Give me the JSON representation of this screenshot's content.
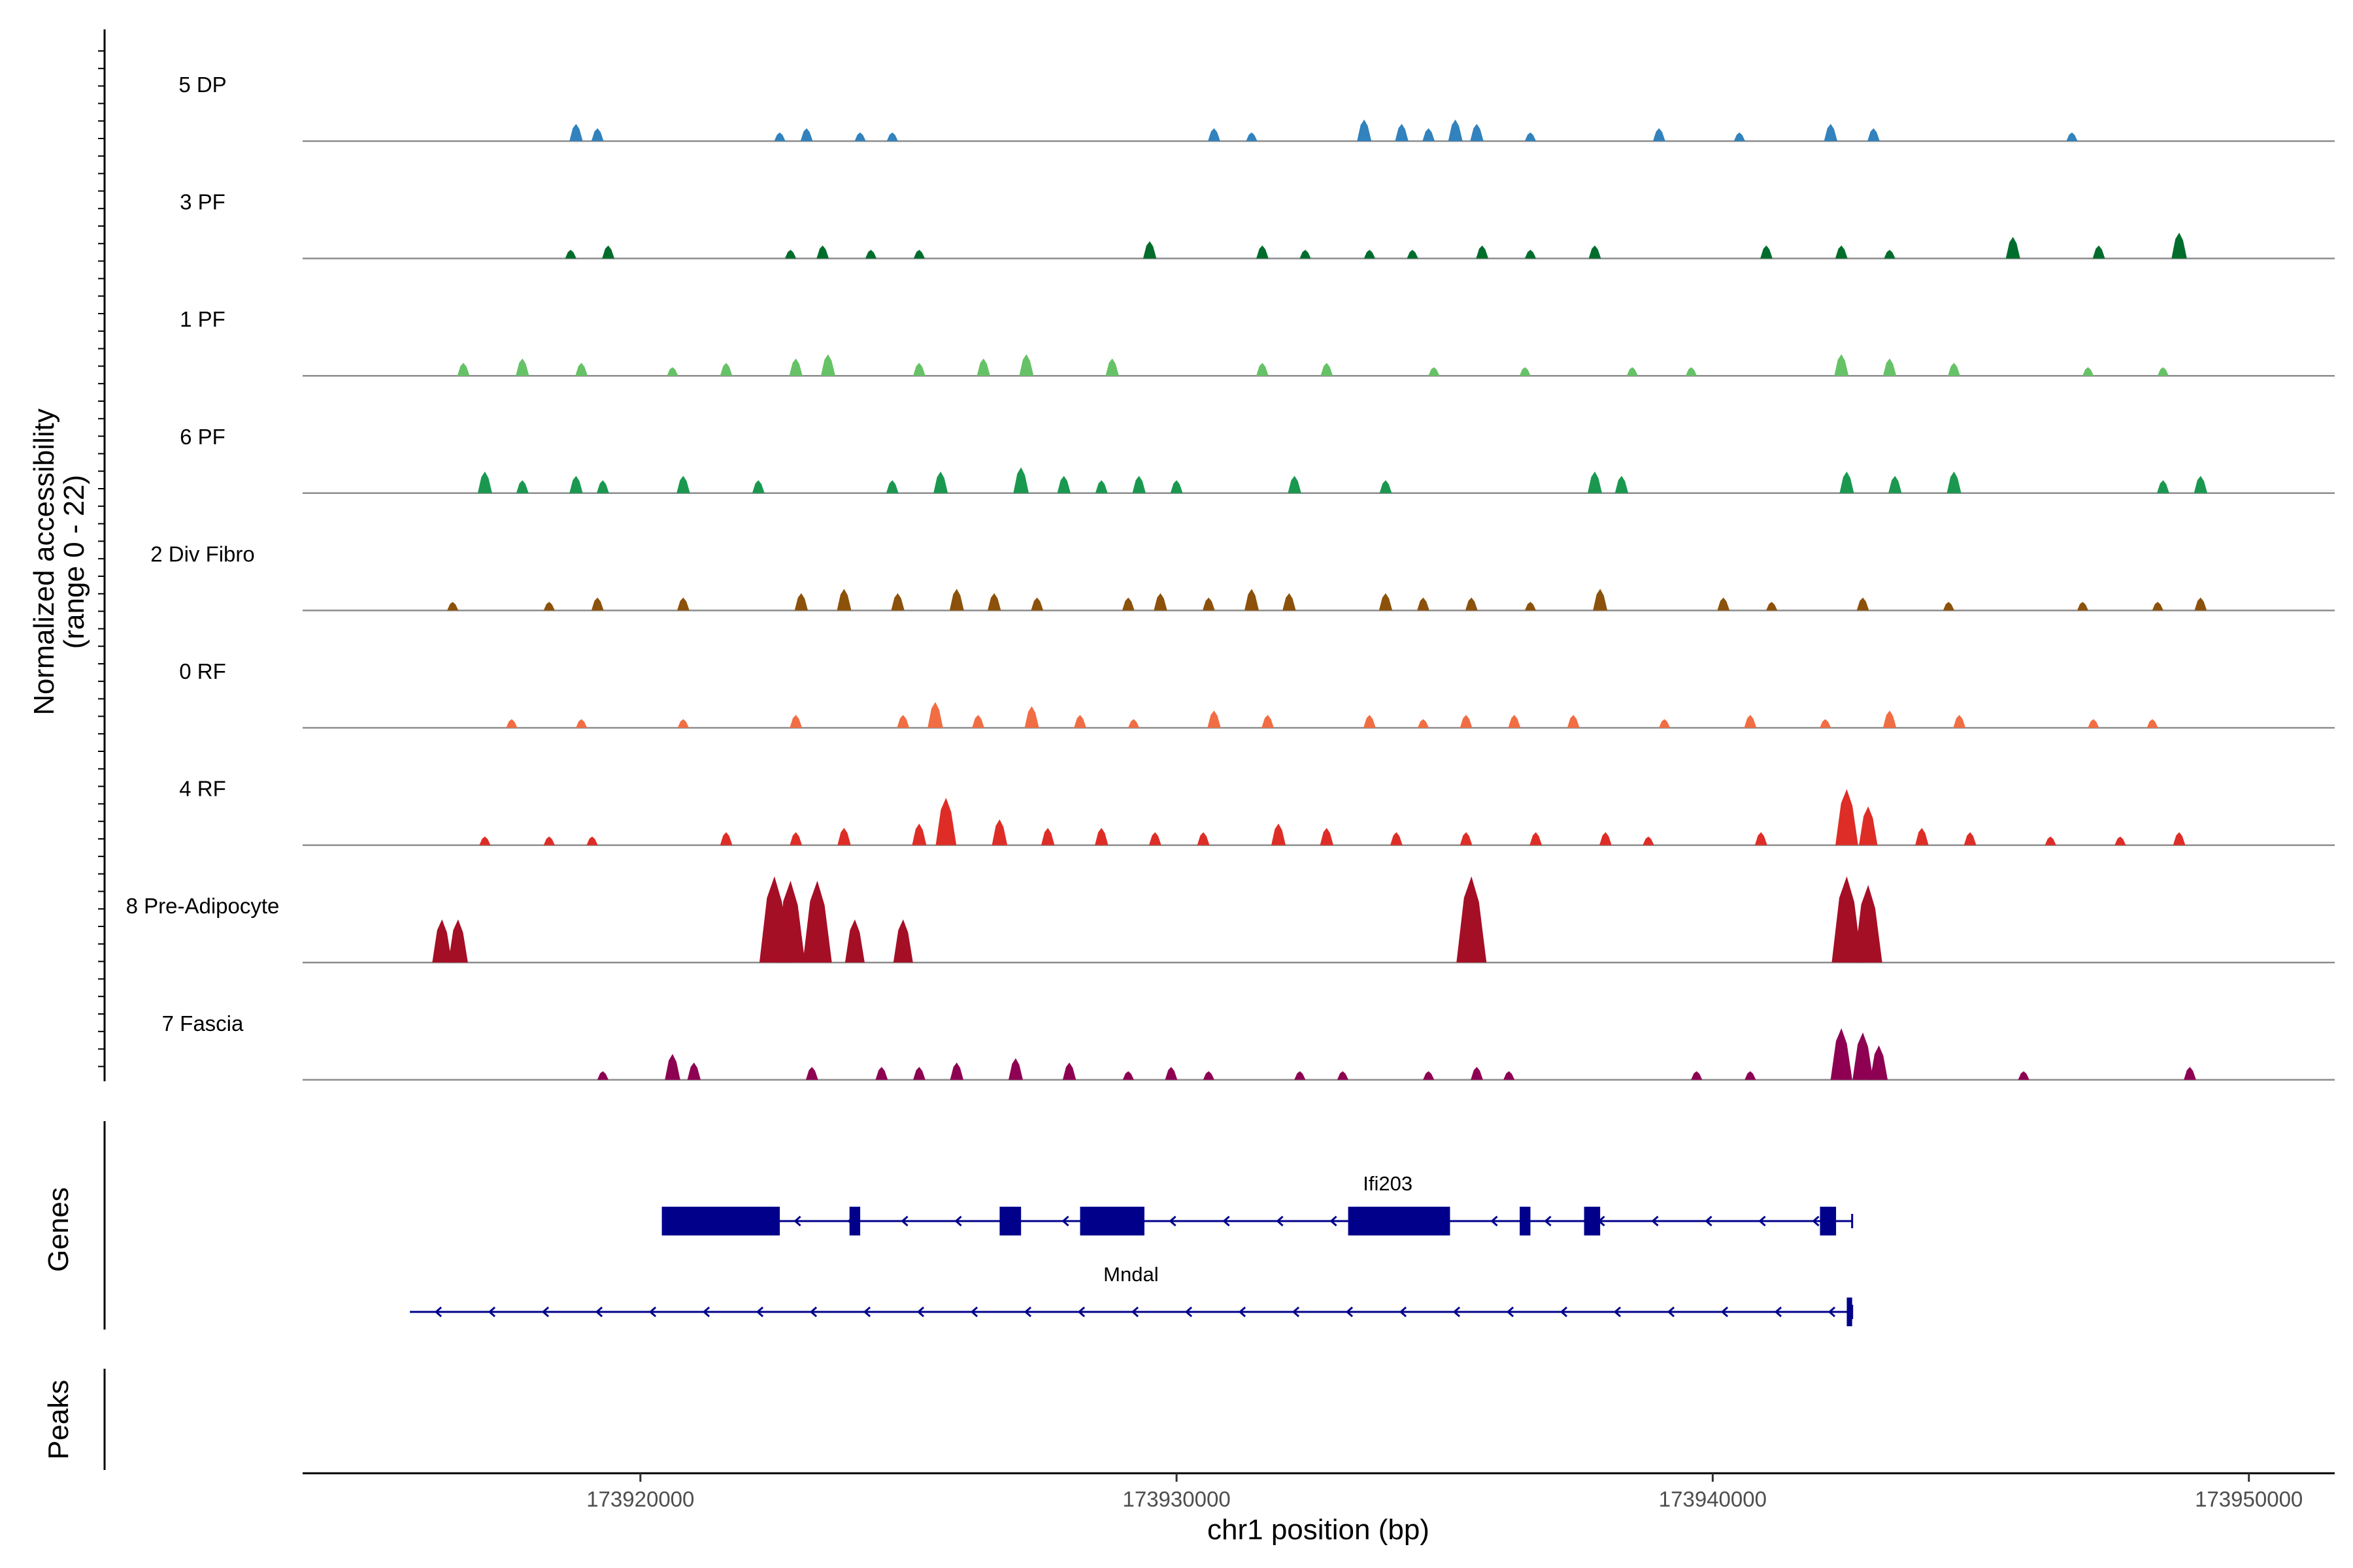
{
  "chart_data": {
    "type": "area",
    "title": "",
    "y_axis_title": "Normalized accessibility",
    "y_axis_subtitle": "(range 0 - 22)",
    "ylim": [
      0,
      22
    ],
    "x_axis_title": "chr1 position (bp)",
    "xlim": [
      173913700,
      173951600
    ],
    "x_ticks": [
      173920000,
      173930000,
      173940000,
      173950000
    ],
    "x_tick_labels": [
      "173920000",
      "173930000",
      "173940000",
      "173950000"
    ],
    "genes_panel_label": "Genes",
    "peaks_panel_label": "Peaks",
    "tracks": [
      {
        "label": "5 DP",
        "color": "#3182BD",
        "peaks": [
          [
            173918800,
            4
          ],
          [
            173919200,
            3
          ],
          [
            173922600,
            2
          ],
          [
            173923100,
            3
          ],
          [
            173924100,
            2
          ],
          [
            173924700,
            2
          ],
          [
            173930700,
            3
          ],
          [
            173931400,
            2
          ],
          [
            173933500,
            5
          ],
          [
            173934200,
            4
          ],
          [
            173934700,
            3
          ],
          [
            173935200,
            5
          ],
          [
            173935600,
            4
          ],
          [
            173936600,
            2
          ],
          [
            173939000,
            3
          ],
          [
            173940500,
            2
          ],
          [
            173942200,
            4
          ],
          [
            173943000,
            3
          ],
          [
            173946700,
            2
          ]
        ]
      },
      {
        "label": "3 PF",
        "color": "#006D2C",
        "peaks": [
          [
            173918700,
            2
          ],
          [
            173919400,
            3
          ],
          [
            173922800,
            2
          ],
          [
            173923400,
            3
          ],
          [
            173924300,
            2
          ],
          [
            173925200,
            2
          ],
          [
            173929500,
            4
          ],
          [
            173931600,
            3
          ],
          [
            173932400,
            2
          ],
          [
            173933600,
            2
          ],
          [
            173934400,
            2
          ],
          [
            173935700,
            3
          ],
          [
            173936600,
            2
          ],
          [
            173937800,
            3
          ],
          [
            173941000,
            3
          ],
          [
            173942400,
            3
          ],
          [
            173943300,
            2
          ],
          [
            173945600,
            5
          ],
          [
            173947200,
            3
          ],
          [
            173948700,
            6
          ]
        ]
      },
      {
        "label": "1 PF",
        "color": "#66C266",
        "peaks": [
          [
            173916700,
            3
          ],
          [
            173917800,
            4
          ],
          [
            173918900,
            3
          ],
          [
            173920600,
            2
          ],
          [
            173921600,
            3
          ],
          [
            173922900,
            4
          ],
          [
            173923500,
            5
          ],
          [
            173925200,
            3
          ],
          [
            173926400,
            4
          ],
          [
            173927200,
            5
          ],
          [
            173928800,
            4
          ],
          [
            173931600,
            3
          ],
          [
            173932800,
            3
          ],
          [
            173934800,
            2
          ],
          [
            173936500,
            2
          ],
          [
            173938500,
            2
          ],
          [
            173939600,
            2
          ],
          [
            173942400,
            5
          ],
          [
            173943300,
            4
          ],
          [
            173944500,
            3
          ],
          [
            173947000,
            2
          ],
          [
            173948400,
            2
          ]
        ]
      },
      {
        "label": "6 PF",
        "color": "#1A9850",
        "peaks": [
          [
            173917100,
            5
          ],
          [
            173917800,
            3
          ],
          [
            173918800,
            4
          ],
          [
            173919300,
            3
          ],
          [
            173920800,
            4
          ],
          [
            173922200,
            3
          ],
          [
            173924700,
            3
          ],
          [
            173925600,
            5
          ],
          [
            173927100,
            6
          ],
          [
            173927900,
            4
          ],
          [
            173928600,
            3
          ],
          [
            173929300,
            4
          ],
          [
            173930000,
            3
          ],
          [
            173932200,
            4
          ],
          [
            173933900,
            3
          ],
          [
            173937800,
            5
          ],
          [
            173938300,
            4
          ],
          [
            173942500,
            5
          ],
          [
            173943400,
            4
          ],
          [
            173944500,
            5
          ],
          [
            173948400,
            3
          ],
          [
            173949100,
            4
          ]
        ]
      },
      {
        "label": "2 Div Fibro",
        "color": "#8C510A",
        "peaks": [
          [
            173916500,
            2
          ],
          [
            173918300,
            2
          ],
          [
            173919200,
            3
          ],
          [
            173920800,
            3
          ],
          [
            173923000,
            4
          ],
          [
            173923800,
            5
          ],
          [
            173924800,
            4
          ],
          [
            173925900,
            5
          ],
          [
            173926600,
            4
          ],
          [
            173927400,
            3
          ],
          [
            173929100,
            3
          ],
          [
            173929700,
            4
          ],
          [
            173930600,
            3
          ],
          [
            173931400,
            5
          ],
          [
            173932100,
            4
          ],
          [
            173933900,
            4
          ],
          [
            173934600,
            3
          ],
          [
            173935500,
            3
          ],
          [
            173936600,
            2
          ],
          [
            173937900,
            5
          ],
          [
            173940200,
            3
          ],
          [
            173941100,
            2
          ],
          [
            173942800,
            3
          ],
          [
            173944400,
            2
          ],
          [
            173946900,
            2
          ],
          [
            173948300,
            2
          ],
          [
            173949100,
            3
          ]
        ]
      },
      {
        "label": "0 RF",
        "color": "#F16D43",
        "peaks": [
          [
            173917600,
            2
          ],
          [
            173918900,
            2
          ],
          [
            173920800,
            2
          ],
          [
            173922900,
            3
          ],
          [
            173924900,
            3
          ],
          [
            173925500,
            6
          ],
          [
            173926300,
            3
          ],
          [
            173927300,
            5
          ],
          [
            173928200,
            3
          ],
          [
            173929200,
            2
          ],
          [
            173930700,
            4
          ],
          [
            173931700,
            3
          ],
          [
            173933600,
            3
          ],
          [
            173934600,
            2
          ],
          [
            173935400,
            3
          ],
          [
            173936300,
            3
          ],
          [
            173937400,
            3
          ],
          [
            173939100,
            2
          ],
          [
            173940700,
            3
          ],
          [
            173942100,
            2
          ],
          [
            173943300,
            4
          ],
          [
            173944600,
            3
          ],
          [
            173947100,
            2
          ],
          [
            173948200,
            2
          ]
        ]
      },
      {
        "label": "4 RF",
        "color": "#DE2D26",
        "peaks": [
          [
            173917100,
            2
          ],
          [
            173918300,
            2
          ],
          [
            173919100,
            2
          ],
          [
            173921600,
            3
          ],
          [
            173922900,
            3
          ],
          [
            173923800,
            4
          ],
          [
            173925200,
            5
          ],
          [
            173925700,
            11
          ],
          [
            173926700,
            6
          ],
          [
            173927600,
            4
          ],
          [
            173928600,
            4
          ],
          [
            173929600,
            3
          ],
          [
            173930500,
            3
          ],
          [
            173931900,
            5
          ],
          [
            173932800,
            4
          ],
          [
            173934100,
            3
          ],
          [
            173935400,
            3
          ],
          [
            173936700,
            3
          ],
          [
            173938000,
            3
          ],
          [
            173938800,
            2
          ],
          [
            173940900,
            3
          ],
          [
            173942500,
            13
          ],
          [
            173942900,
            9
          ],
          [
            173943900,
            4
          ],
          [
            173944800,
            3
          ],
          [
            173946300,
            2
          ],
          [
            173947600,
            2
          ],
          [
            173948700,
            3
          ]
        ]
      },
      {
        "label": "8 Pre-Adipocyte",
        "color": "#A50F26",
        "peaks": [
          [
            173916300,
            10
          ],
          [
            173916600,
            10
          ],
          [
            173922500,
            20
          ],
          [
            173922800,
            19
          ],
          [
            173923300,
            19
          ],
          [
            173924000,
            10
          ],
          [
            173924900,
            10
          ],
          [
            173935500,
            20
          ],
          [
            173942500,
            20
          ],
          [
            173942900,
            18
          ]
        ]
      },
      {
        "label": "7 Fascia",
        "color": "#8E0152",
        "peaks": [
          [
            173919300,
            2
          ],
          [
            173920600,
            6
          ],
          [
            173921000,
            4
          ],
          [
            173923200,
            3
          ],
          [
            173924500,
            3
          ],
          [
            173925200,
            3
          ],
          [
            173925900,
            4
          ],
          [
            173927000,
            5
          ],
          [
            173928000,
            4
          ],
          [
            173929100,
            2
          ],
          [
            173929900,
            3
          ],
          [
            173930600,
            2
          ],
          [
            173932300,
            2
          ],
          [
            173933100,
            2
          ],
          [
            173934700,
            2
          ],
          [
            173935600,
            3
          ],
          [
            173936200,
            2
          ],
          [
            173939700,
            2
          ],
          [
            173940700,
            2
          ],
          [
            173942400,
            12
          ],
          [
            173942800,
            11
          ],
          [
            173943100,
            8
          ],
          [
            173945800,
            2
          ],
          [
            173948900,
            3
          ]
        ]
      }
    ],
    "genes": [
      {
        "name": "Ifi203",
        "strand": "-",
        "start": 173920400,
        "end": 173942600,
        "exons": [
          [
            173920400,
            173922600
          ],
          [
            173923900,
            173924100
          ],
          [
            173926700,
            173927100
          ],
          [
            173928200,
            173929400
          ],
          [
            173933200,
            173935100
          ],
          [
            173936400,
            173936600
          ],
          [
            173937600,
            173937900
          ],
          [
            173942000,
            173942300
          ]
        ]
      },
      {
        "name": "Mndal",
        "strand": "-",
        "start": 173915700,
        "end": 173942600,
        "exons": [
          [
            173942500,
            173942600
          ]
        ]
      }
    ]
  }
}
